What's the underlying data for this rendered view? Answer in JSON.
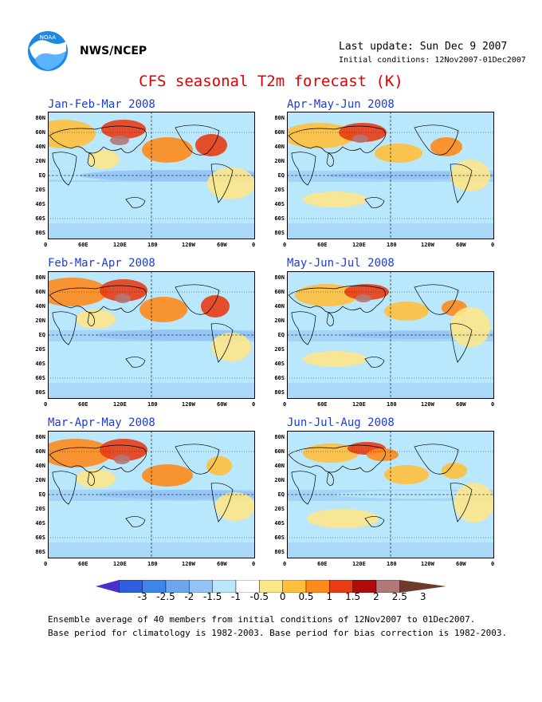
{
  "header": {
    "agency": "NWS/NCEP",
    "last_update": "Last update: Sun Dec 9 2007",
    "initial_conditions": "Initial conditions: 12Nov2007-01Dec2007"
  },
  "title": "CFS seasonal T2m forecast (K)",
  "panels": [
    {
      "label": "Jan-Feb-Mar 2008",
      "id": "jfm"
    },
    {
      "label": "Apr-May-Jun 2008",
      "id": "amj"
    },
    {
      "label": "Feb-Mar-Apr 2008",
      "id": "fma"
    },
    {
      "label": "May-Jun-Jul 2008",
      "id": "mjj"
    },
    {
      "label": "Mar-Apr-May 2008",
      "id": "mam"
    },
    {
      "label": "Jun-Jul-Aug 2008",
      "id": "jja"
    }
  ],
  "lat_labels": [
    "80N",
    "60N",
    "40N",
    "20N",
    "EQ",
    "20S",
    "40S",
    "60S",
    "80S"
  ],
  "lon_labels": [
    "0",
    "60E",
    "120E",
    "180",
    "120W",
    "60W",
    "0"
  ],
  "colorbar": {
    "labels": [
      "-3",
      "-2.5",
      "-2",
      "-1.5",
      "-1",
      "-0.5",
      "0",
      "0.5",
      "1",
      "1.5",
      "2",
      "2.5",
      "3"
    ],
    "colors": [
      "#4a2fc8",
      "#2f5fe0",
      "#3f84e8",
      "#6aa7f0",
      "#93c4f5",
      "#b9e7fb",
      "#ffffff",
      "#fde68a",
      "#ffbf3c",
      "#ff8a1c",
      "#e83c14",
      "#b00a0a",
      "#b07878",
      "#6e3b2b"
    ]
  },
  "footer": {
    "line1": "Ensemble average of 40 members from initial conditions of 12Nov2007 to 01Dec2007.",
    "line2": "Base period for climatology is 1982-2003. Base period for bias correction is 1982-2003."
  }
}
